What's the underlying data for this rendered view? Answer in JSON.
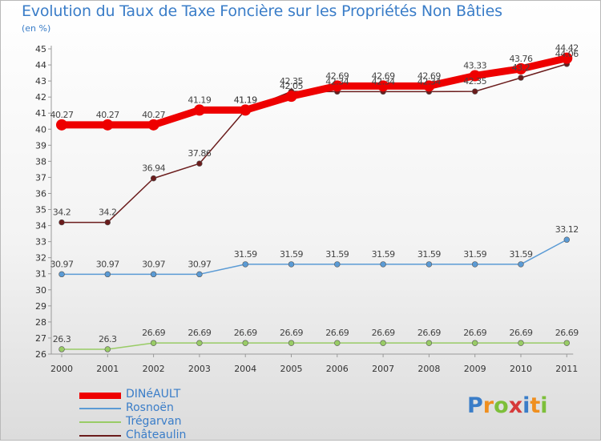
{
  "chart_data": {
    "type": "line",
    "title": "Evolution du Taux de Taxe Foncière sur les Propriétés Non Bâties",
    "ylabel": "(en %)",
    "xlabel": "",
    "categories": [
      "2000",
      "2001",
      "2002",
      "2003",
      "2004",
      "2005",
      "2006",
      "2007",
      "2008",
      "2009",
      "2010",
      "2011"
    ],
    "ylim": [
      26,
      45
    ],
    "yticks": [
      "26",
      "27",
      "28",
      "29",
      "30",
      "31",
      "32",
      "33",
      "34",
      "35",
      "36",
      "37",
      "38",
      "39",
      "40",
      "41",
      "42",
      "43",
      "44",
      "45"
    ],
    "grid": false,
    "legend_position": "bottom-left",
    "series": [
      {
        "name": "DINéAULT",
        "color": "#ee0000",
        "values": [
          40.27,
          40.27,
          40.27,
          41.19,
          41.19,
          42.05,
          42.69,
          42.69,
          42.69,
          43.33,
          43.76,
          44.42
        ],
        "labels": [
          "40.27",
          "40.27",
          "40.27",
          "41.19",
          "41.19",
          "42.05",
          "42.69",
          "42.69",
          "42.69",
          "43.33",
          "43.76",
          "44.42"
        ]
      },
      {
        "name": "Rosnoën",
        "color": "#5b9bd5",
        "values": [
          30.97,
          30.97,
          30.97,
          30.97,
          31.59,
          31.59,
          31.59,
          31.59,
          31.59,
          31.59,
          31.59,
          33.12
        ],
        "labels": [
          "30.97",
          "30.97",
          "30.97",
          "30.97",
          "31.59",
          "31.59",
          "31.59",
          "31.59",
          "31.59",
          "31.59",
          "31.59",
          "33.12"
        ]
      },
      {
        "name": "Trégarvan",
        "color": "#99cc66",
        "values": [
          26.3,
          26.3,
          26.69,
          26.69,
          26.69,
          26.69,
          26.69,
          26.69,
          26.69,
          26.69,
          26.69,
          26.69
        ],
        "labels": [
          "26.3",
          "26.3",
          "26.69",
          "26.69",
          "26.69",
          "26.69",
          "26.69",
          "26.69",
          "26.69",
          "26.69",
          "26.69",
          "26.69"
        ]
      },
      {
        "name": "Châteaulin",
        "color": "#6b1c1c",
        "values": [
          34.2,
          34.2,
          36.94,
          37.86,
          41.19,
          42.35,
          42.34,
          42.34,
          42.34,
          42.35,
          43.2,
          44.06
        ],
        "labels": [
          "34.2",
          "34.2",
          "36.94",
          "37.86",
          "41.19",
          "42.35",
          "42.34",
          "42.34",
          "42.34",
          "42.35",
          "43.2",
          "44.06"
        ]
      }
    ]
  },
  "logo": {
    "letters": [
      "P",
      "r",
      "o",
      "x",
      "i",
      "t",
      "i"
    ],
    "colors": [
      "#3a7dc8",
      "#ef8f1f",
      "#7dbf3a",
      "#d63a3a",
      "#3a7dc8",
      "#ef8f1f",
      "#7dbf3a"
    ]
  }
}
